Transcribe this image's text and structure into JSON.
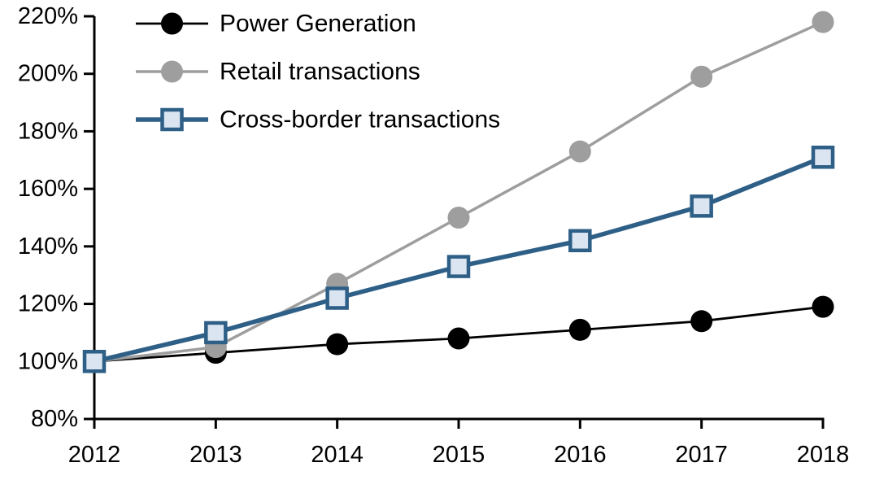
{
  "chart_data": {
    "type": "line",
    "title": "",
    "xlabel": "",
    "ylabel": "",
    "x": [
      2012,
      2013,
      2014,
      2015,
      2016,
      2017,
      2018
    ],
    "x_tick_labels": [
      "2012",
      "2013",
      "2014",
      "2015",
      "2016",
      "2017",
      "2018"
    ],
    "ylim": [
      80,
      220
    ],
    "ytick_step": 20,
    "y_tick_labels": [
      "80%",
      "100%",
      "120%",
      "140%",
      "160%",
      "180%",
      "200%",
      "220%"
    ],
    "grid": false,
    "legend_position": "top-left-inside",
    "axis_color": "#000000",
    "background_color": "#ffffff",
    "series": [
      {
        "name": "Power Generation",
        "color": "#000000",
        "marker": "circle",
        "marker_fill": "#000000",
        "line_width": 2.8,
        "values": [
          100,
          103,
          106,
          108,
          111,
          114,
          119
        ]
      },
      {
        "name": "Retail transactions",
        "color": "#9e9e9e",
        "marker": "circle",
        "marker_fill": "#9e9e9e",
        "line_width": 3.5,
        "values": [
          100,
          105,
          127,
          150,
          173,
          199,
          218
        ]
      },
      {
        "name": "Cross-border transactions",
        "color": "#2e5f87",
        "marker": "square",
        "marker_fill": "#dbe5f1",
        "line_width": 5.5,
        "values": [
          100,
          110,
          122,
          133,
          142,
          154,
          171
        ]
      }
    ]
  }
}
